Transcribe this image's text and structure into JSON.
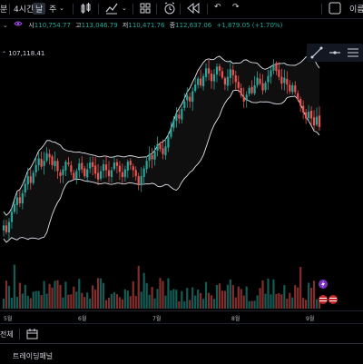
{
  "toolbar": {
    "first_item": "분",
    "interval": "4시간",
    "day": "날",
    "week": "주",
    "right_label": "이름"
  },
  "quote": {
    "open_label": "시",
    "open": "110,754.77",
    "high_label": "고",
    "high": "113,046.79",
    "low_label": "저",
    "low": "110,471.76",
    "close_label": "종",
    "close": "112,637.06",
    "change": "+1,879.05 (+1.70%)"
  },
  "price_marker": "107,118.41",
  "xaxis_labels": [
    "5월",
    "6월",
    "7월",
    "8월",
    "9월"
  ],
  "bottom": {
    "label": "전체"
  },
  "panel": {
    "title": "트레이딩패널"
  },
  "colors": {
    "up": "#26a69a",
    "down": "#ef5350",
    "band": "#e0e3eb",
    "bg": "#000000"
  },
  "chart_data": {
    "type": "candlestick",
    "closes": [
      101.0,
      100.2,
      101.4,
      102.6,
      103.5,
      104.3,
      103.6,
      104.8,
      105.9,
      106.8,
      106.0,
      107.2,
      108.1,
      108.9,
      107.9,
      108.6,
      109.5,
      109.0,
      108.1,
      108.6,
      107.4,
      106.8,
      107.6,
      108.5,
      108.2,
      107.3,
      106.5,
      107.4,
      108.3,
      107.6,
      106.8,
      107.6,
      108.4,
      107.9,
      107.1,
      106.4,
      107.4,
      108.2,
      107.5,
      106.8,
      107.5,
      108.4,
      108.0,
      107.3,
      106.7,
      107.6,
      108.5,
      108.1,
      107.5,
      106.8,
      105.9,
      106.8,
      107.7,
      108.6,
      109.4,
      108.8,
      109.7,
      110.6,
      110.0,
      109.4,
      110.3,
      111.4,
      112.5,
      113.4,
      114.2,
      113.6,
      114.7,
      115.6,
      116.3,
      115.6,
      116.8,
      117.6,
      118.3,
      117.5,
      118.6,
      119.5,
      118.9,
      118.0,
      118.8,
      119.7,
      119.2,
      118.4,
      117.6,
      118.5,
      119.4,
      118.7,
      117.9,
      117.2,
      116.3,
      115.6,
      116.4,
      117.2,
      116.6,
      117.5,
      118.4,
      117.7,
      116.9,
      117.8,
      118.6,
      119.3,
      120.0,
      119.2,
      118.5,
      117.7,
      118.4,
      117.6,
      116.8,
      117.5,
      116.7,
      115.9,
      115.1,
      114.3,
      113.6,
      114.4,
      113.6,
      112.8,
      113.8,
      112.6
    ]
  }
}
